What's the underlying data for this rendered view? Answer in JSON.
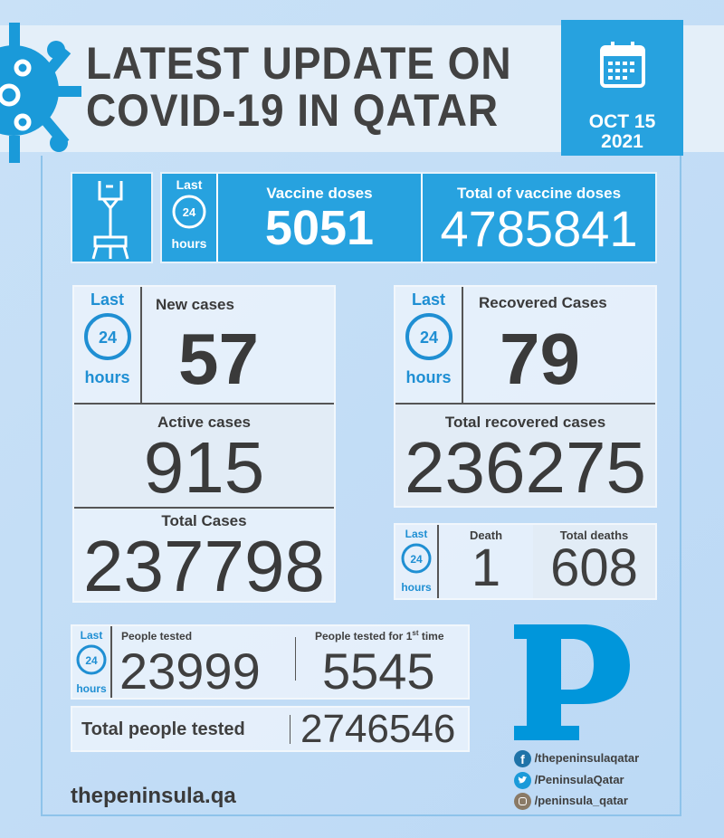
{
  "header": {
    "title_line1": "LATEST UPDATE ON",
    "title_line2": "COVID-19 IN QATAR",
    "date_line1": "OCT 15",
    "date_line2": "2021"
  },
  "period": {
    "last": "Last",
    "hours": "hours",
    "clock": "24"
  },
  "vaccine": {
    "daily_label": "Vaccine doses",
    "daily_value": "5051",
    "total_label": "Total of vaccine doses",
    "total_value": "4785841"
  },
  "cases": {
    "new_label": "New cases",
    "new_value": "57",
    "active_label": "Active cases",
    "active_value": "915",
    "total_label": "Total Cases",
    "total_value": "237798"
  },
  "recovered": {
    "new_label": "Recovered Cases",
    "new_value": "79",
    "total_label": "Total recovered cases",
    "total_value": "236275"
  },
  "deaths": {
    "death_label": "Death",
    "death_value": "1",
    "total_label": "Total deaths",
    "total_value": "608"
  },
  "tests": {
    "tested_label": "People tested",
    "tested_value": "23999",
    "first_label": "People tested for 1",
    "first_sup": "st",
    "first_suffix": " time",
    "first_value": "5545",
    "total_label": "Total people tested",
    "total_value": "2746546"
  },
  "brand": {
    "logo": "P",
    "website": "thepeninsula.qa",
    "facebook": "/thepeninsulaqatar",
    "twitter": "/PeninsulaQatar",
    "instagram": "/peninsula_qatar"
  },
  "colors": {
    "accent": "#27a2df",
    "logo": "#0096db",
    "text": "#3f3f3f"
  }
}
